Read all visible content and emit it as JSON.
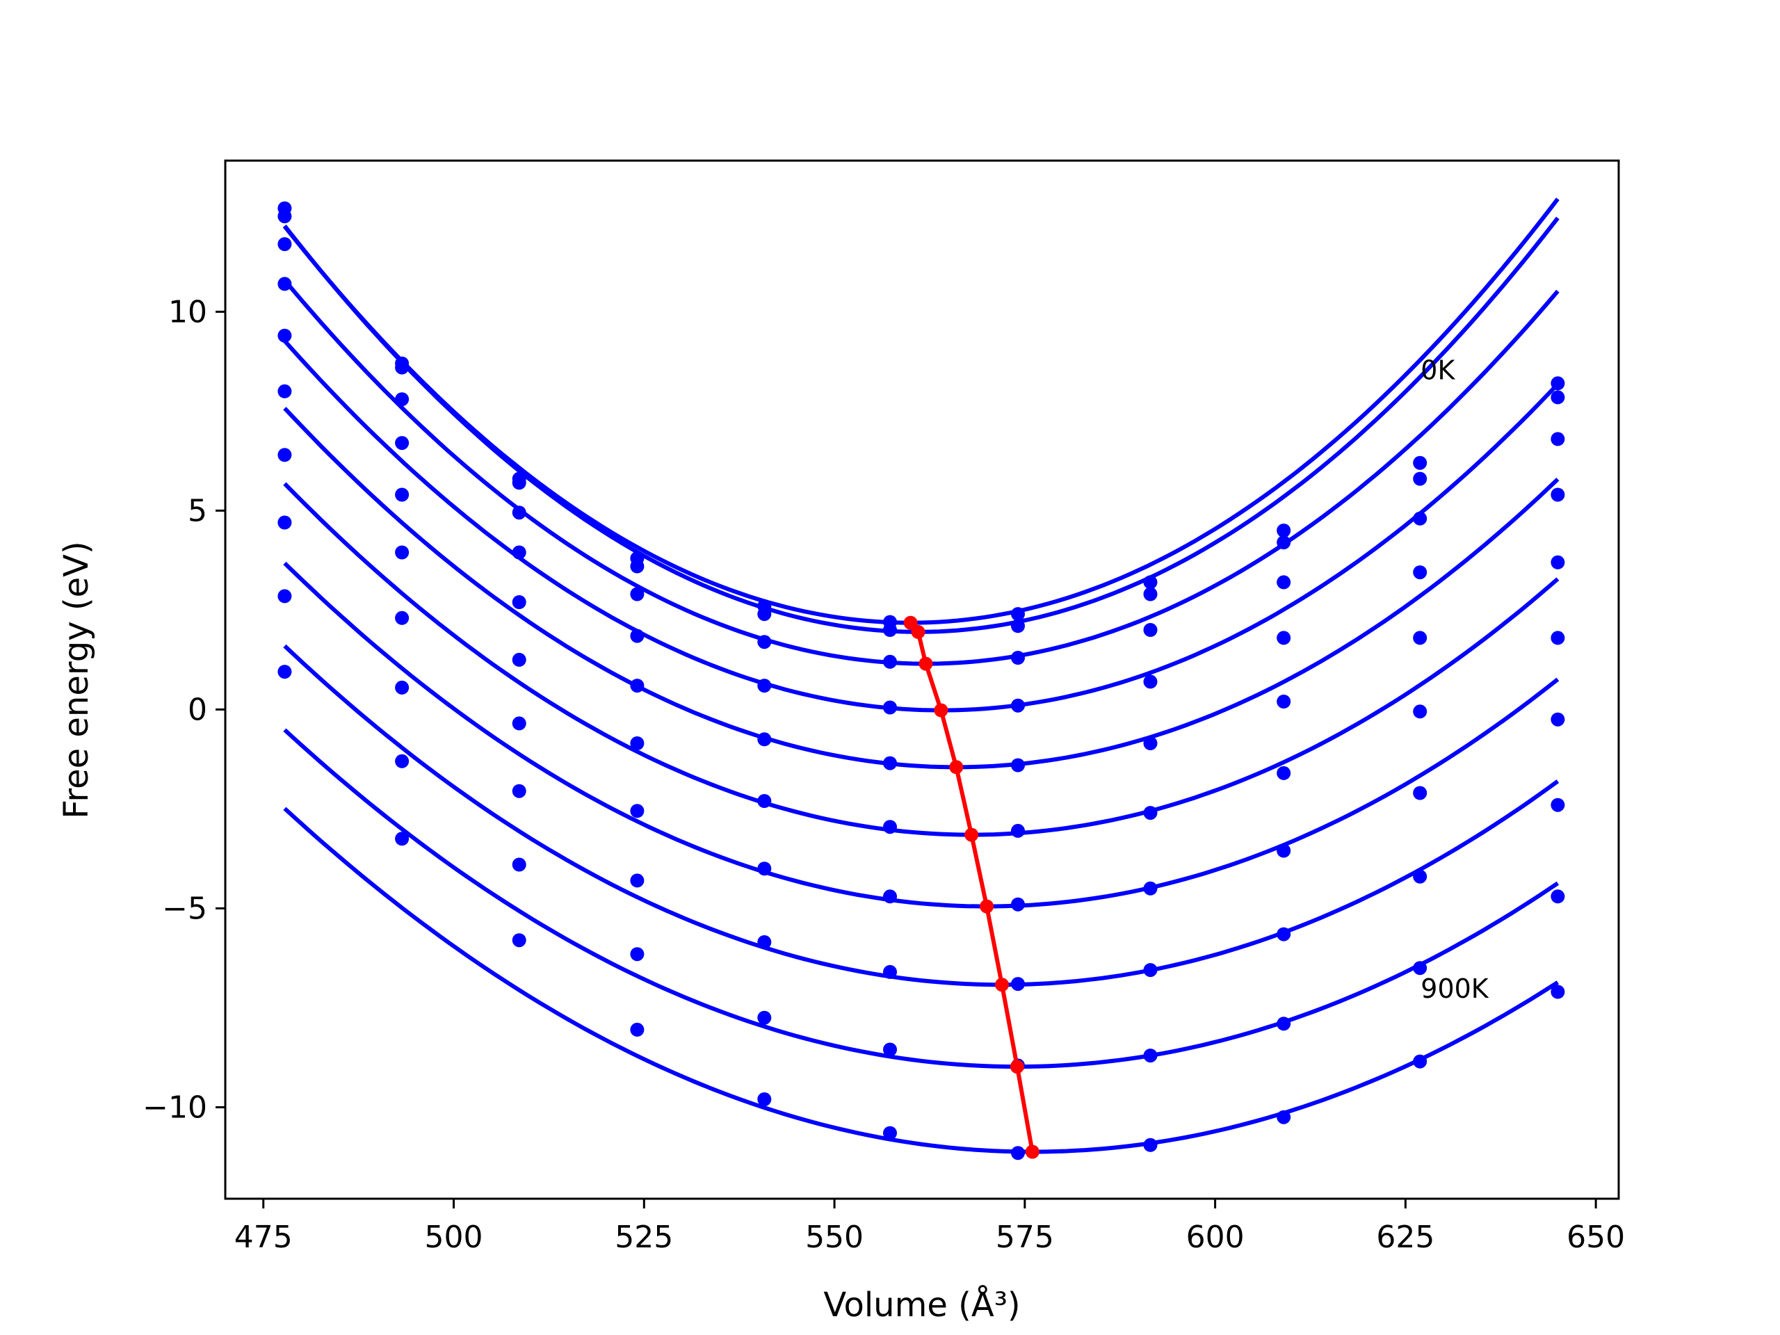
{
  "chart_data": {
    "type": "line",
    "xlabel": "Volume (Å³)",
    "ylabel": "Free energy (eV)",
    "xlim": [
      470,
      653
    ],
    "ylim": [
      -12.3,
      13.8
    ],
    "xticks": [
      475,
      500,
      525,
      550,
      575,
      600,
      625,
      650
    ],
    "yticks": [
      -10,
      -5,
      0,
      5,
      10
    ],
    "xtick_labels": [
      "475",
      "500",
      "525",
      "550",
      "575",
      "600",
      "625",
      "650"
    ],
    "ytick_labels": [
      "−10",
      "−5",
      "0",
      "5",
      "10"
    ],
    "grid": false,
    "legend": "none",
    "series_color": "#0000ff",
    "equilibrium_color": "#ff0000",
    "volumes": [
      477.8,
      493.2,
      508.6,
      524.1,
      540.8,
      557.3,
      574.1,
      591.5,
      609.0,
      626.9,
      645.0
    ],
    "series": [
      {
        "values": [
          12.6,
          8.7,
          5.8,
          3.8,
          2.6,
          2.2,
          2.4,
          3.2,
          4.5,
          6.2,
          8.2
        ],
        "fit": {
          "a": 0.001475,
          "v0": 560.0,
          "f0": 2.18
        }
      },
      {
        "values": [
          12.4,
          8.6,
          5.7,
          3.6,
          2.4,
          2.0,
          2.1,
          2.9,
          4.2,
          5.8,
          7.85
        ],
        "fit": {
          "a": 0.001475,
          "v0": 561.0,
          "f0": 1.95
        }
      },
      {
        "values": [
          11.7,
          7.8,
          4.95,
          2.9,
          1.7,
          1.2,
          1.3,
          2.0,
          3.2,
          4.8,
          6.8
        ],
        "fit": {
          "a": 0.00136,
          "v0": 562.0,
          "f0": 1.15
        }
      },
      {
        "values": [
          10.7,
          6.7,
          3.95,
          1.85,
          0.6,
          0.05,
          0.1,
          0.7,
          1.8,
          3.45,
          5.4
        ],
        "fit": {
          "a": 0.00125,
          "v0": 564.0,
          "f0": -0.02
        }
      },
      {
        "values": [
          9.4,
          5.4,
          2.7,
          0.6,
          -0.75,
          -1.35,
          -1.4,
          -0.85,
          0.2,
          1.8,
          3.7
        ],
        "fit": {
          "a": 0.00116,
          "v0": 566.0,
          "f0": -1.45
        }
      },
      {
        "values": [
          8.0,
          3.95,
          1.25,
          -0.85,
          -2.3,
          -2.95,
          -3.05,
          -2.6,
          -1.6,
          -0.05,
          1.8
        ],
        "fit": {
          "a": 0.001085,
          "v0": 568.0,
          "f0": -3.15
        }
      },
      {
        "values": [
          6.4,
          2.3,
          -0.35,
          -2.55,
          -4.0,
          -4.7,
          -4.9,
          -4.5,
          -3.55,
          -2.1,
          -0.25
        ],
        "fit": {
          "a": 0.001015,
          "v0": 570.0,
          "f0": -4.95
        }
      },
      {
        "values": [
          4.7,
          0.55,
          -2.05,
          -4.3,
          -5.85,
          -6.6,
          -6.9,
          -6.55,
          -5.65,
          -4.2,
          -2.4
        ],
        "fit": {
          "a": 0.00096,
          "v0": 572.0,
          "f0": -6.92
        }
      },
      {
        "values": [
          2.85,
          -1.3,
          -3.9,
          -6.15,
          -7.75,
          -8.55,
          -8.95,
          -8.7,
          -7.9,
          -6.5,
          -4.7
        ],
        "fit": {
          "a": 0.000915,
          "v0": 574.0,
          "f0": -8.98
        }
      },
      {
        "values": [
          0.95,
          -3.25,
          -5.8,
          -8.05,
          -9.8,
          -10.65,
          -11.15,
          -10.95,
          -10.25,
          -8.85,
          -7.1
        ],
        "fit": {
          "a": 0.000895,
          "v0": 576.0,
          "f0": -11.12
        }
      }
    ],
    "equilibrium": {
      "x": [
        560.0,
        561.0,
        562.0,
        564.0,
        566.0,
        568.0,
        570.0,
        572.0,
        574.0,
        576.0
      ],
      "y": [
        2.18,
        1.95,
        1.15,
        -0.02,
        -1.45,
        -3.15,
        -4.95,
        -6.92,
        -8.98,
        -11.12
      ]
    },
    "annotations": [
      {
        "text": "0K",
        "x": 627.0,
        "y": 8.3
      },
      {
        "text": "900K",
        "x": 627.0,
        "y": -7.25
      }
    ]
  }
}
